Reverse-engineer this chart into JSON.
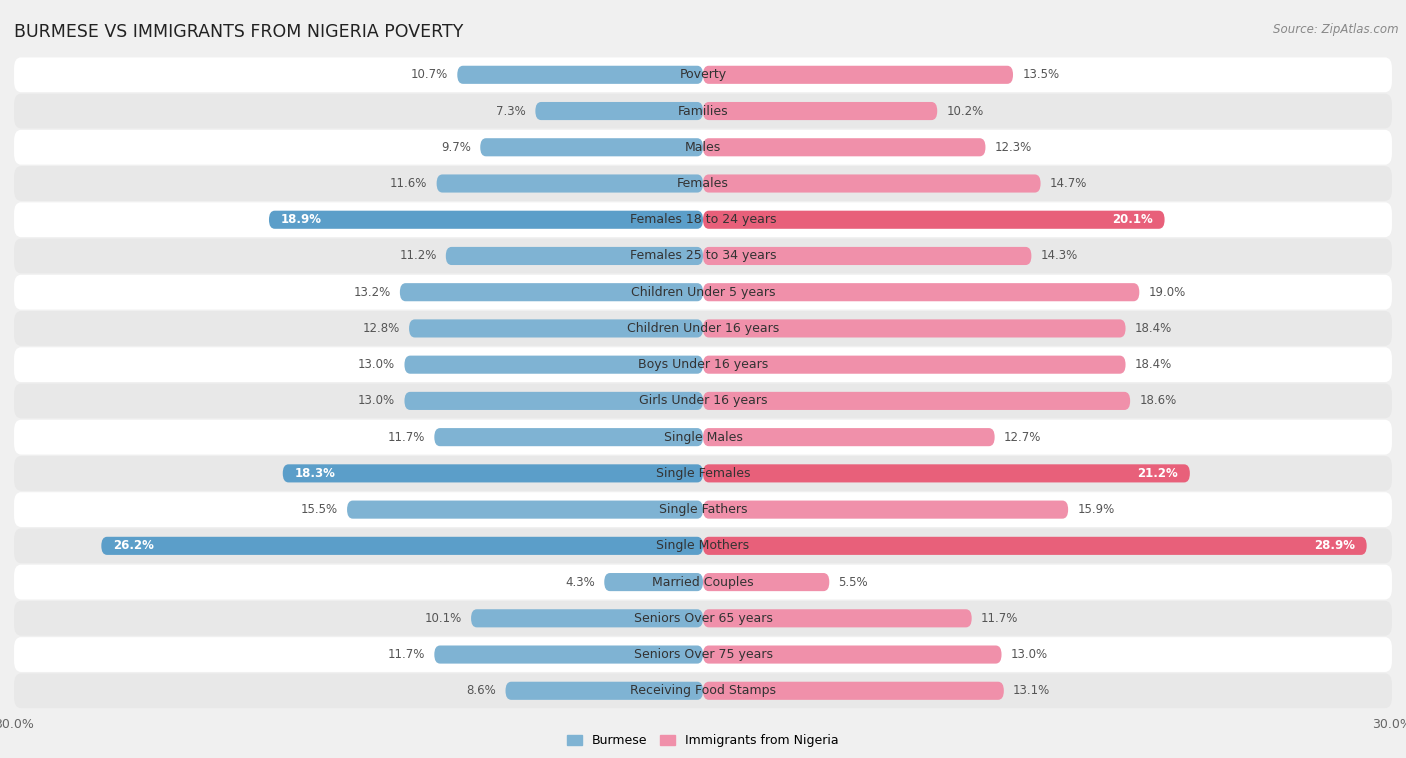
{
  "title": "Burmese vs Immigrants from Nigeria Poverty",
  "source": "Source: ZipAtlas.com",
  "categories": [
    "Poverty",
    "Families",
    "Males",
    "Females",
    "Females 18 to 24 years",
    "Females 25 to 34 years",
    "Children Under 5 years",
    "Children Under 16 years",
    "Boys Under 16 years",
    "Girls Under 16 years",
    "Single Males",
    "Single Females",
    "Single Fathers",
    "Single Mothers",
    "Married Couples",
    "Seniors Over 65 years",
    "Seniors Over 75 years",
    "Receiving Food Stamps"
  ],
  "burmese": [
    10.7,
    7.3,
    9.7,
    11.6,
    18.9,
    11.2,
    13.2,
    12.8,
    13.0,
    13.0,
    11.7,
    18.3,
    15.5,
    26.2,
    4.3,
    10.1,
    11.7,
    8.6
  ],
  "nigeria": [
    13.5,
    10.2,
    12.3,
    14.7,
    20.1,
    14.3,
    19.0,
    18.4,
    18.4,
    18.6,
    12.7,
    21.2,
    15.9,
    28.9,
    5.5,
    11.7,
    13.0,
    13.1
  ],
  "burmese_color": "#7fb3d3",
  "nigeria_color": "#f090aa",
  "burmese_highlight_color": "#5b9ec9",
  "nigeria_highlight_color": "#e8607a",
  "highlight_rows": [
    4,
    11,
    13
  ],
  "axis_limit": 30.0,
  "bg_color": "#f0f0f0",
  "row_bg_white": "#ffffff",
  "row_bg_gray": "#e8e8e8",
  "legend_burmese": "Burmese",
  "legend_nigeria": "Immigrants from Nigeria",
  "bar_height": 0.5,
  "fontsize_label": 9.0,
  "fontsize_value": 8.5,
  "fontsize_title": 12.5,
  "fontsize_source": 8.5,
  "fontsize_axis": 9.0
}
